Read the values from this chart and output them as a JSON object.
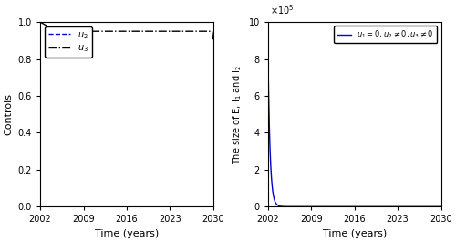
{
  "xlim": [
    2002,
    2030
  ],
  "left_ylim": [
    0,
    1.0
  ],
  "left_yticks": [
    0,
    0.2,
    0.4,
    0.6,
    0.8,
    1.0
  ],
  "left_xticks": [
    2002,
    2009,
    2016,
    2023,
    2030
  ],
  "left_ylabel": "Controls",
  "left_xlabel": "Time (years)",
  "right_ylim": [
    0,
    1000000
  ],
  "right_yticks": [
    0,
    200000,
    400000,
    600000,
    800000,
    1000000
  ],
  "right_xticks": [
    2002,
    2009,
    2016,
    2023,
    2030
  ],
  "right_ylabel": "The size of E, I$_1$ and I$_2$",
  "right_xlabel": "Time (years)",
  "u2_color": "#0000cc",
  "u3_color": "#000000",
  "right_color": "#0000cc",
  "background_color": "#ffffff"
}
